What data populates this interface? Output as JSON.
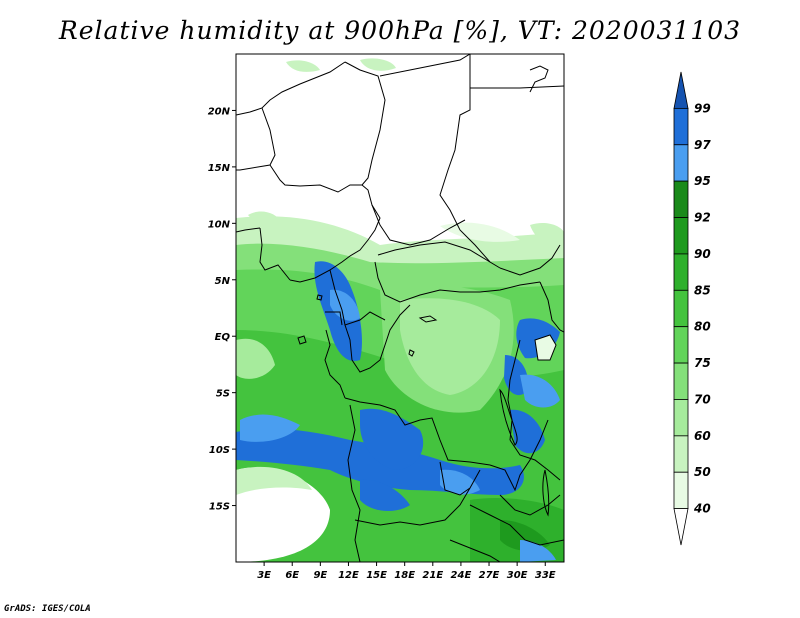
{
  "title": "Relative humidity at 900hPa [%], VT: 2020031103",
  "credit": "GrADS: IGES/COLA",
  "map": {
    "lon_range": [
      0,
      35
    ],
    "lat_range": [
      -20,
      25
    ],
    "lat_ticks": [
      {
        "value": 20,
        "label": "20N"
      },
      {
        "value": 15,
        "label": "15N"
      },
      {
        "value": 10,
        "label": "10N"
      },
      {
        "value": 5,
        "label": "5N"
      },
      {
        "value": 0,
        "label": "EQ"
      },
      {
        "value": -5,
        "label": "5S"
      },
      {
        "value": -10,
        "label": "10S"
      },
      {
        "value": -15,
        "label": "15S"
      }
    ],
    "lon_ticks": [
      {
        "value": 3,
        "label": "3E"
      },
      {
        "value": 6,
        "label": "6E"
      },
      {
        "value": 9,
        "label": "9E"
      },
      {
        "value": 12,
        "label": "12E"
      },
      {
        "value": 15,
        "label": "15E"
      },
      {
        "value": 18,
        "label": "18E"
      },
      {
        "value": 21,
        "label": "21E"
      },
      {
        "value": 24,
        "label": "24E"
      },
      {
        "value": 27,
        "label": "27E"
      },
      {
        "value": 30,
        "label": "30E"
      },
      {
        "value": 33,
        "label": "33E"
      }
    ]
  },
  "colorbar": {
    "levels": [
      "40",
      "50",
      "60",
      "70",
      "75",
      "80",
      "85",
      "90",
      "92",
      "95",
      "97",
      "99"
    ],
    "colors": [
      "#ffffff",
      "#e8fbe4",
      "#c8f3c0",
      "#a6eb9c",
      "#84e07a",
      "#62d45a",
      "#44c33e",
      "#2eb02c",
      "#1e9a1e",
      "#1a8a1a",
      "#4a9ef0",
      "#1f6fd8",
      "#1553b0"
    ]
  }
}
